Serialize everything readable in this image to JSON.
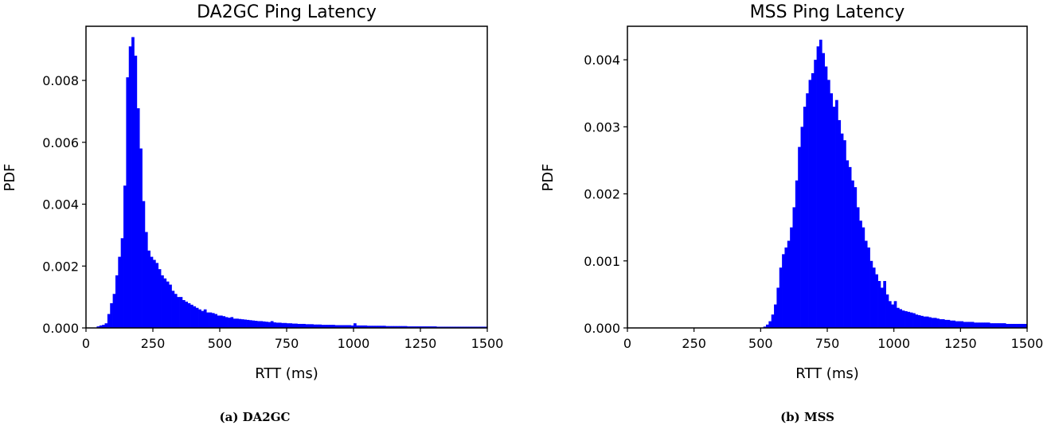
{
  "figures": [
    {
      "caption": "(a) DA2GC",
      "chart": {
        "type": "bar",
        "title": "DA2GC Ping Latency",
        "xlabel": "RTT (ms)",
        "ylabel": "PDF",
        "xlim": [
          0,
          1500
        ],
        "ylim": [
          0,
          0.00975
        ],
        "xticks": [
          "0",
          "250",
          "500",
          "750",
          "1000",
          "1250",
          "1500"
        ],
        "yticks": [
          "0.000",
          "0.002",
          "0.004",
          "0.006",
          "0.008"
        ],
        "color": "#0000ff"
      }
    },
    {
      "caption": "(b) MSS",
      "chart": {
        "type": "bar",
        "title": "MSS Ping Latency",
        "xlabel": "RTT (ms)",
        "ylabel": "PDF",
        "xlim": [
          0,
          1500
        ],
        "ylim": [
          0,
          0.0045
        ],
        "xticks": [
          "0",
          "250",
          "500",
          "750",
          "1000",
          "1250",
          "1500"
        ],
        "yticks": [
          "0.000",
          "0.001",
          "0.002",
          "0.003",
          "0.004"
        ],
        "color": "#0000ff"
      }
    }
  ],
  "chart_data": [
    {
      "type": "bar",
      "title": "DA2GC Ping Latency",
      "xlabel": "RTT (ms)",
      "ylabel": "PDF",
      "xlim": [
        0,
        1500
      ],
      "ylim": [
        0,
        0.00975
      ],
      "bin_width": 10,
      "x": [
        40,
        50,
        60,
        70,
        80,
        90,
        100,
        110,
        120,
        130,
        140,
        150,
        160,
        170,
        180,
        190,
        200,
        210,
        220,
        230,
        240,
        250,
        260,
        270,
        280,
        290,
        300,
        310,
        320,
        330,
        340,
        350,
        360,
        370,
        380,
        390,
        400,
        410,
        420,
        430,
        440,
        450,
        460,
        470,
        480,
        490,
        500,
        510,
        520,
        530,
        540,
        550,
        560,
        570,
        580,
        590,
        600,
        610,
        620,
        630,
        640,
        650,
        660,
        670,
        680,
        690,
        700,
        710,
        720,
        730,
        740,
        750,
        760,
        770,
        780,
        790,
        800,
        810,
        820,
        830,
        840,
        850,
        860,
        870,
        880,
        890,
        900,
        910,
        920,
        930,
        940,
        950,
        960,
        970,
        980,
        990,
        1000,
        1010,
        1020,
        1030,
        1040,
        1050,
        1060,
        1070,
        1080,
        1090,
        1100,
        1110,
        1120,
        1130,
        1140,
        1150,
        1160,
        1170,
        1180,
        1190,
        1200,
        1210,
        1220,
        1230,
        1240,
        1250,
        1260,
        1270,
        1280,
        1290,
        1300,
        1310,
        1320,
        1330,
        1340,
        1350,
        1360,
        1370,
        1380,
        1390,
        1400,
        1410,
        1420,
        1430,
        1440,
        1450,
        1460,
        1470,
        1480,
        1490
      ],
      "values": [
        5e-05,
        8e-05,
        0.0001,
        0.00015,
        0.00045,
        0.0008,
        0.0011,
        0.0017,
        0.0023,
        0.0029,
        0.0046,
        0.0081,
        0.0091,
        0.0094,
        0.0088,
        0.0071,
        0.0058,
        0.0041,
        0.0031,
        0.0025,
        0.0023,
        0.0022,
        0.0021,
        0.0019,
        0.0017,
        0.0016,
        0.0015,
        0.0014,
        0.0012,
        0.0011,
        0.001,
        0.001,
        0.0009,
        0.00085,
        0.0008,
        0.00075,
        0.0007,
        0.00065,
        0.0006,
        0.00055,
        0.0006,
        0.0005,
        0.0005,
        0.00048,
        0.00045,
        0.0004,
        0.0004,
        0.00038,
        0.00035,
        0.00033,
        0.00035,
        0.0003,
        0.0003,
        0.00029,
        0.00028,
        0.00027,
        0.00026,
        0.00025,
        0.00024,
        0.00023,
        0.00022,
        0.00022,
        0.00021,
        0.0002,
        0.00019,
        0.00022,
        0.00018,
        0.00017,
        0.00017,
        0.00016,
        0.00016,
        0.00015,
        0.00015,
        0.00014,
        0.00014,
        0.00013,
        0.00013,
        0.00013,
        0.00012,
        0.00012,
        0.00012,
        0.00011,
        0.00011,
        0.00011,
        0.0001,
        0.0001,
        0.0001,
        0.0001,
        0.0001,
        9e-05,
        9e-05,
        9e-05,
        9e-05,
        9e-05,
        9e-05,
        8e-05,
        0.00015,
        8e-05,
        8e-05,
        8e-05,
        8e-05,
        7e-05,
        7e-05,
        7e-05,
        7e-05,
        7e-05,
        7e-05,
        7e-05,
        6e-05,
        6e-05,
        6e-05,
        6e-05,
        6e-05,
        6e-05,
        6e-05,
        6e-05,
        5e-05,
        5e-05,
        5e-05,
        5e-05,
        5e-05,
        5e-05,
        5e-05,
        5e-05,
        5e-05,
        5e-05,
        5e-05,
        4e-05,
        4e-05,
        4e-05,
        4e-05,
        4e-05,
        4e-05,
        4e-05,
        4e-05,
        4e-05,
        4e-05,
        4e-05,
        4e-05,
        4e-05,
        4e-05,
        4e-05,
        4e-05,
        4e-05,
        4e-05,
        4e-05
      ]
    },
    {
      "type": "bar",
      "title": "MSS Ping Latency",
      "xlabel": "RTT (ms)",
      "ylabel": "PDF",
      "xlim": [
        0,
        1500
      ],
      "ylim": [
        0,
        0.0045
      ],
      "bin_width": 10,
      "x": [
        510,
        520,
        530,
        540,
        550,
        560,
        570,
        580,
        590,
        600,
        610,
        620,
        630,
        640,
        650,
        660,
        670,
        680,
        690,
        700,
        710,
        720,
        730,
        740,
        750,
        760,
        770,
        780,
        790,
        800,
        810,
        820,
        830,
        840,
        850,
        860,
        870,
        880,
        890,
        900,
        910,
        920,
        930,
        940,
        950,
        960,
        970,
        980,
        990,
        1000,
        1010,
        1020,
        1030,
        1040,
        1050,
        1060,
        1070,
        1080,
        1090,
        1100,
        1110,
        1120,
        1130,
        1140,
        1150,
        1160,
        1170,
        1180,
        1190,
        1200,
        1210,
        1220,
        1230,
        1240,
        1250,
        1260,
        1270,
        1280,
        1290,
        1300,
        1310,
        1320,
        1330,
        1340,
        1350,
        1360,
        1370,
        1380,
        1390,
        1400,
        1410,
        1420,
        1430,
        1440,
        1450,
        1460,
        1470,
        1480,
        1490
      ],
      "values": [
        2e-05,
        5e-05,
        0.0001,
        0.0002,
        0.00035,
        0.0006,
        0.0009,
        0.0011,
        0.0012,
        0.0013,
        0.0015,
        0.0018,
        0.0022,
        0.0027,
        0.003,
        0.0033,
        0.0035,
        0.0037,
        0.0038,
        0.004,
        0.0042,
        0.0043,
        0.0041,
        0.0039,
        0.0037,
        0.0035,
        0.0033,
        0.0034,
        0.0031,
        0.0029,
        0.0028,
        0.0025,
        0.0024,
        0.0022,
        0.0021,
        0.0018,
        0.0016,
        0.0015,
        0.0013,
        0.0012,
        0.001,
        0.0009,
        0.0008,
        0.0007,
        0.0006,
        0.0007,
        0.0005,
        0.0004,
        0.00035,
        0.0004,
        0.0003,
        0.00028,
        0.00026,
        0.00025,
        0.00024,
        0.00023,
        0.00022,
        0.0002,
        0.00019,
        0.00018,
        0.00017,
        0.00017,
        0.00016,
        0.00015,
        0.00015,
        0.00014,
        0.00013,
        0.00013,
        0.00012,
        0.00012,
        0.00011,
        0.00011,
        0.0001,
        0.0001,
        0.0001,
        9e-05,
        9e-05,
        9e-05,
        9e-05,
        8e-05,
        8e-05,
        8e-05,
        8e-05,
        8e-05,
        8e-05,
        7e-05,
        7e-05,
        7e-05,
        7e-05,
        7e-05,
        7e-05,
        6e-05,
        6e-05,
        6e-05,
        6e-05,
        6e-05,
        6e-05,
        6e-05,
        6e-05
      ]
    }
  ]
}
